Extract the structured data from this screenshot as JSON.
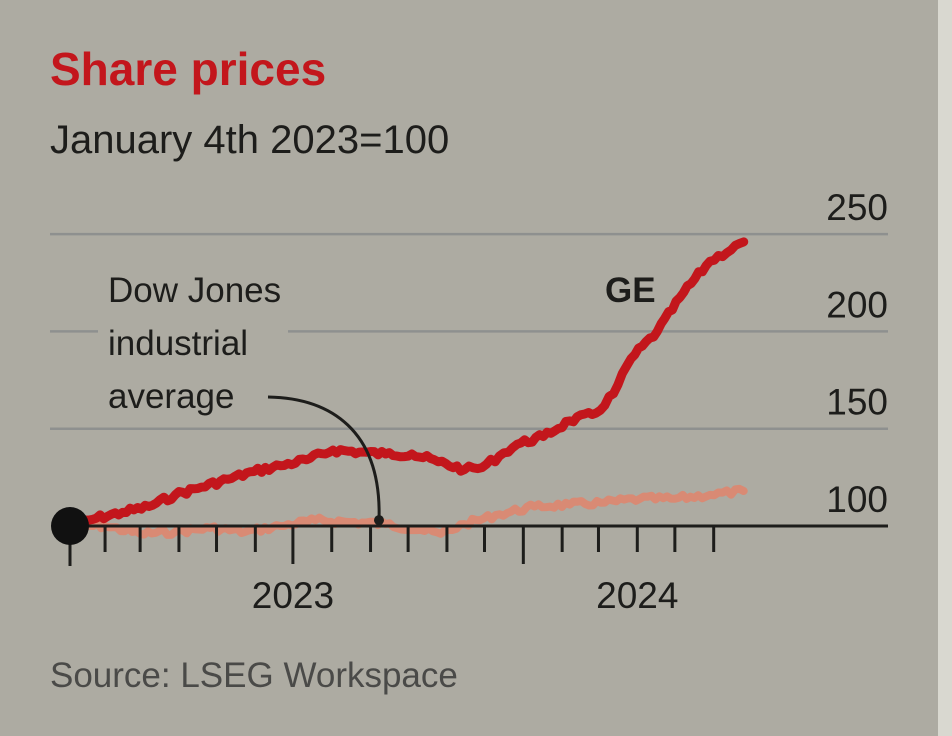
{
  "chart_data": {
    "type": "line",
    "title": "Share prices",
    "subtitle": "January 4th 2023=100",
    "source": "Source: LSEG Workspace",
    "y_range": [
      100,
      250
    ],
    "y_ticks": [
      "100",
      "150",
      "200",
      "250"
    ],
    "x_range": [
      "2023-01-04",
      "2024-06-30"
    ],
    "x_tick_labels": [
      {
        "label": "2023",
        "date": "2023-07-01"
      },
      {
        "label": "2024",
        "date": "2024-04-01"
      }
    ],
    "grid": true,
    "colors": {
      "GE": "#c3161c",
      "Dow Jones industrial average": "#d98a74",
      "axis": "#1d1d1b",
      "grid": "#8e908f",
      "background": "#adaba2",
      "title": "#c3161c"
    },
    "series": [
      {
        "name": "GE",
        "points": [
          [
            "2023-01-04",
            100
          ],
          [
            "2023-01-25",
            104
          ],
          [
            "2023-02-15",
            107
          ],
          [
            "2023-03-08",
            110
          ],
          [
            "2023-03-29",
            116
          ],
          [
            "2023-04-19",
            120
          ],
          [
            "2023-05-10",
            124
          ],
          [
            "2023-05-31",
            128
          ],
          [
            "2023-06-21",
            131
          ],
          [
            "2023-07-12",
            134
          ],
          [
            "2023-08-02",
            139
          ],
          [
            "2023-08-23",
            138
          ],
          [
            "2023-09-13",
            137
          ],
          [
            "2023-10-04",
            137
          ],
          [
            "2023-10-25",
            133
          ],
          [
            "2023-11-15",
            129
          ],
          [
            "2023-11-29",
            130
          ],
          [
            "2023-12-13",
            136
          ],
          [
            "2023-12-27",
            142
          ],
          [
            "2024-01-17",
            146
          ],
          [
            "2024-02-07",
            154
          ],
          [
            "2024-02-28",
            158
          ],
          [
            "2024-03-13",
            168
          ],
          [
            "2024-03-27",
            186
          ],
          [
            "2024-04-17",
            200
          ],
          [
            "2024-05-08",
            220
          ],
          [
            "2024-05-29",
            236
          ],
          [
            "2024-06-25",
            246
          ]
        ]
      },
      {
        "name": "Dow Jones industrial average",
        "label_lines": [
          "Dow Jones",
          "industrial",
          "average"
        ],
        "points": [
          [
            "2023-01-04",
            100
          ],
          [
            "2023-02-01",
            100
          ],
          [
            "2023-03-01",
            96
          ],
          [
            "2023-03-29",
            97
          ],
          [
            "2023-04-26",
            99
          ],
          [
            "2023-05-24",
            97
          ],
          [
            "2023-06-21",
            100
          ],
          [
            "2023-07-19",
            103
          ],
          [
            "2023-08-16",
            102
          ],
          [
            "2023-09-13",
            101
          ],
          [
            "2023-10-11",
            98
          ],
          [
            "2023-10-27",
            96
          ],
          [
            "2023-11-15",
            101
          ],
          [
            "2023-12-13",
            106
          ],
          [
            "2024-01-10",
            110
          ],
          [
            "2024-02-07",
            111
          ],
          [
            "2024-03-06",
            112
          ],
          [
            "2024-04-03",
            114
          ],
          [
            "2024-05-01",
            114
          ],
          [
            "2024-05-29",
            116
          ],
          [
            "2024-06-25",
            118
          ]
        ]
      }
    ]
  }
}
